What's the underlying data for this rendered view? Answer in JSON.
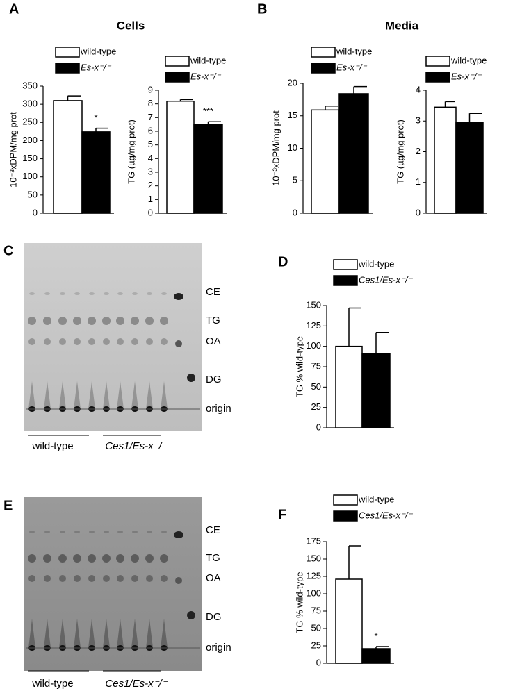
{
  "panels": {
    "letters": [
      "A",
      "B",
      "C",
      "D",
      "E",
      "F"
    ],
    "titles": [
      "Cells",
      "Media"
    ]
  },
  "tlc": [
    {
      "bands": [
        "CE",
        "TG",
        "OA",
        "DG",
        "origin"
      ],
      "groups": [
        "wild-type",
        "Ces1/Es-x⁻/⁻"
      ]
    },
    {
      "bands": [
        "CE",
        "TG",
        "OA",
        "DG",
        "origin"
      ],
      "groups": [
        "wild-type",
        "Ces1/Es-x⁻/⁻"
      ]
    }
  ],
  "chart_data": [
    {
      "type": "bar",
      "y_label": "10⁻³xDPM/mg prot",
      "ylim": [
        0,
        350
      ],
      "yticks": [
        0,
        50,
        100,
        150,
        200,
        250,
        300,
        350
      ],
      "series": [
        {
          "name": "wild-type",
          "color": "#ffffff",
          "values": [
            310
          ],
          "errors": [
            13
          ]
        },
        {
          "name": "Es-x⁻/⁻",
          "color": "#000000",
          "values": [
            224
          ],
          "errors": [
            10
          ]
        }
      ],
      "annotations": [
        "*"
      ]
    },
    {
      "type": "bar",
      "y_label": "TG (µg/mg prot)",
      "ylim": [
        0,
        9
      ],
      "yticks": [
        0,
        1,
        2,
        3,
        4,
        5,
        6,
        7,
        8,
        9
      ],
      "series": [
        {
          "name": "wild-type",
          "color": "#ffffff",
          "values": [
            8.2
          ],
          "errors": [
            0.12
          ]
        },
        {
          "name": "Es-x⁻/⁻",
          "color": "#000000",
          "values": [
            6.5
          ],
          "errors": [
            0.2
          ]
        }
      ],
      "annotations": [
        "***"
      ]
    },
    {
      "type": "bar",
      "y_label": "10⁻³xDPM/mg prot",
      "ylim": [
        0,
        20
      ],
      "yticks": [
        0,
        5,
        10,
        15,
        20
      ],
      "series": [
        {
          "name": "wild-type",
          "color": "#ffffff",
          "values": [
            15.9
          ],
          "errors": [
            0.6
          ]
        },
        {
          "name": "Es-x⁻/⁻",
          "color": "#000000",
          "values": [
            18.4
          ],
          "errors": [
            1.1
          ]
        }
      ]
    },
    {
      "type": "bar",
      "y_label": "TG (µg/mg prot)",
      "ylim": [
        0,
        4
      ],
      "yticks": [
        0,
        1,
        2,
        3,
        4
      ],
      "series": [
        {
          "name": "wild-type",
          "color": "#ffffff",
          "values": [
            3.45
          ],
          "errors": [
            0.18
          ]
        },
        {
          "name": "Es-x⁻/⁻",
          "color": "#000000",
          "values": [
            2.95
          ],
          "errors": [
            0.3
          ]
        }
      ]
    },
    {
      "type": "bar",
      "y_label": "TG % wild-type",
      "ylim": [
        0,
        150
      ],
      "yticks": [
        0,
        25,
        50,
        75,
        100,
        125,
        150
      ],
      "series": [
        {
          "name": "wild-type",
          "color": "#ffffff",
          "values": [
            100
          ],
          "errors": [
            47
          ]
        },
        {
          "name": "Ces1/Es-x⁻/⁻",
          "color": "#000000",
          "values": [
            91
          ],
          "errors": [
            26
          ]
        }
      ]
    },
    {
      "type": "bar",
      "y_label": "TG % wild-type",
      "ylim": [
        0,
        175
      ],
      "yticks": [
        0,
        25,
        50,
        75,
        100,
        125,
        150,
        175
      ],
      "series": [
        {
          "name": "wild-type",
          "color": "#ffffff",
          "values": [
            121
          ],
          "errors": [
            48
          ]
        },
        {
          "name": "Ces1/Es-x⁻/⁻",
          "color": "#000000",
          "values": [
            21
          ],
          "errors": [
            3
          ]
        }
      ],
      "annotations": [
        "*"
      ]
    }
  ]
}
